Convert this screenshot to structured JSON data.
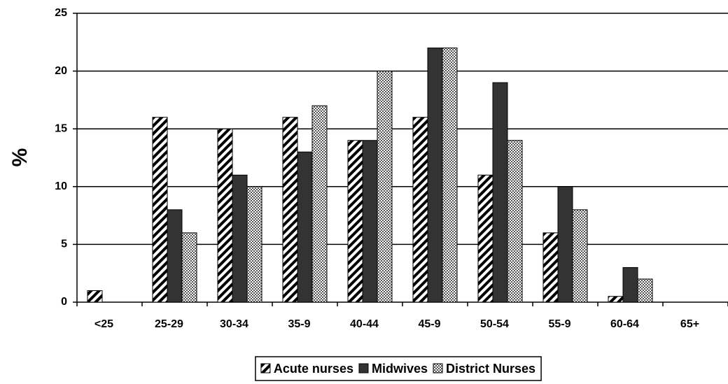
{
  "chart_data": {
    "type": "bar",
    "y_label": "%",
    "categories": [
      "<25",
      "25-29",
      "30-34",
      "35-9",
      "40-44",
      "45-9",
      "50-54",
      "55-9",
      "60-64",
      "65+"
    ],
    "series": [
      {
        "name": "Acute nurses",
        "color": "#000000",
        "pattern": "hatch",
        "values": [
          1,
          16,
          15,
          16,
          14,
          16,
          11,
          6,
          0.5,
          0
        ]
      },
      {
        "name": "Midwives",
        "color": "#333333",
        "pattern": "solid",
        "values": [
          0,
          8,
          11,
          13,
          14,
          22,
          19,
          10,
          3,
          0
        ]
      },
      {
        "name": "District Nurses",
        "color": "#999999",
        "pattern": "checker",
        "values": [
          0,
          6,
          10,
          17,
          20,
          22,
          14,
          8,
          2,
          0
        ]
      }
    ],
    "ylim": [
      0,
      25
    ],
    "yticks": [
      0,
      5,
      10,
      15,
      20,
      25
    ],
    "grid": true,
    "legend": "bottom"
  }
}
